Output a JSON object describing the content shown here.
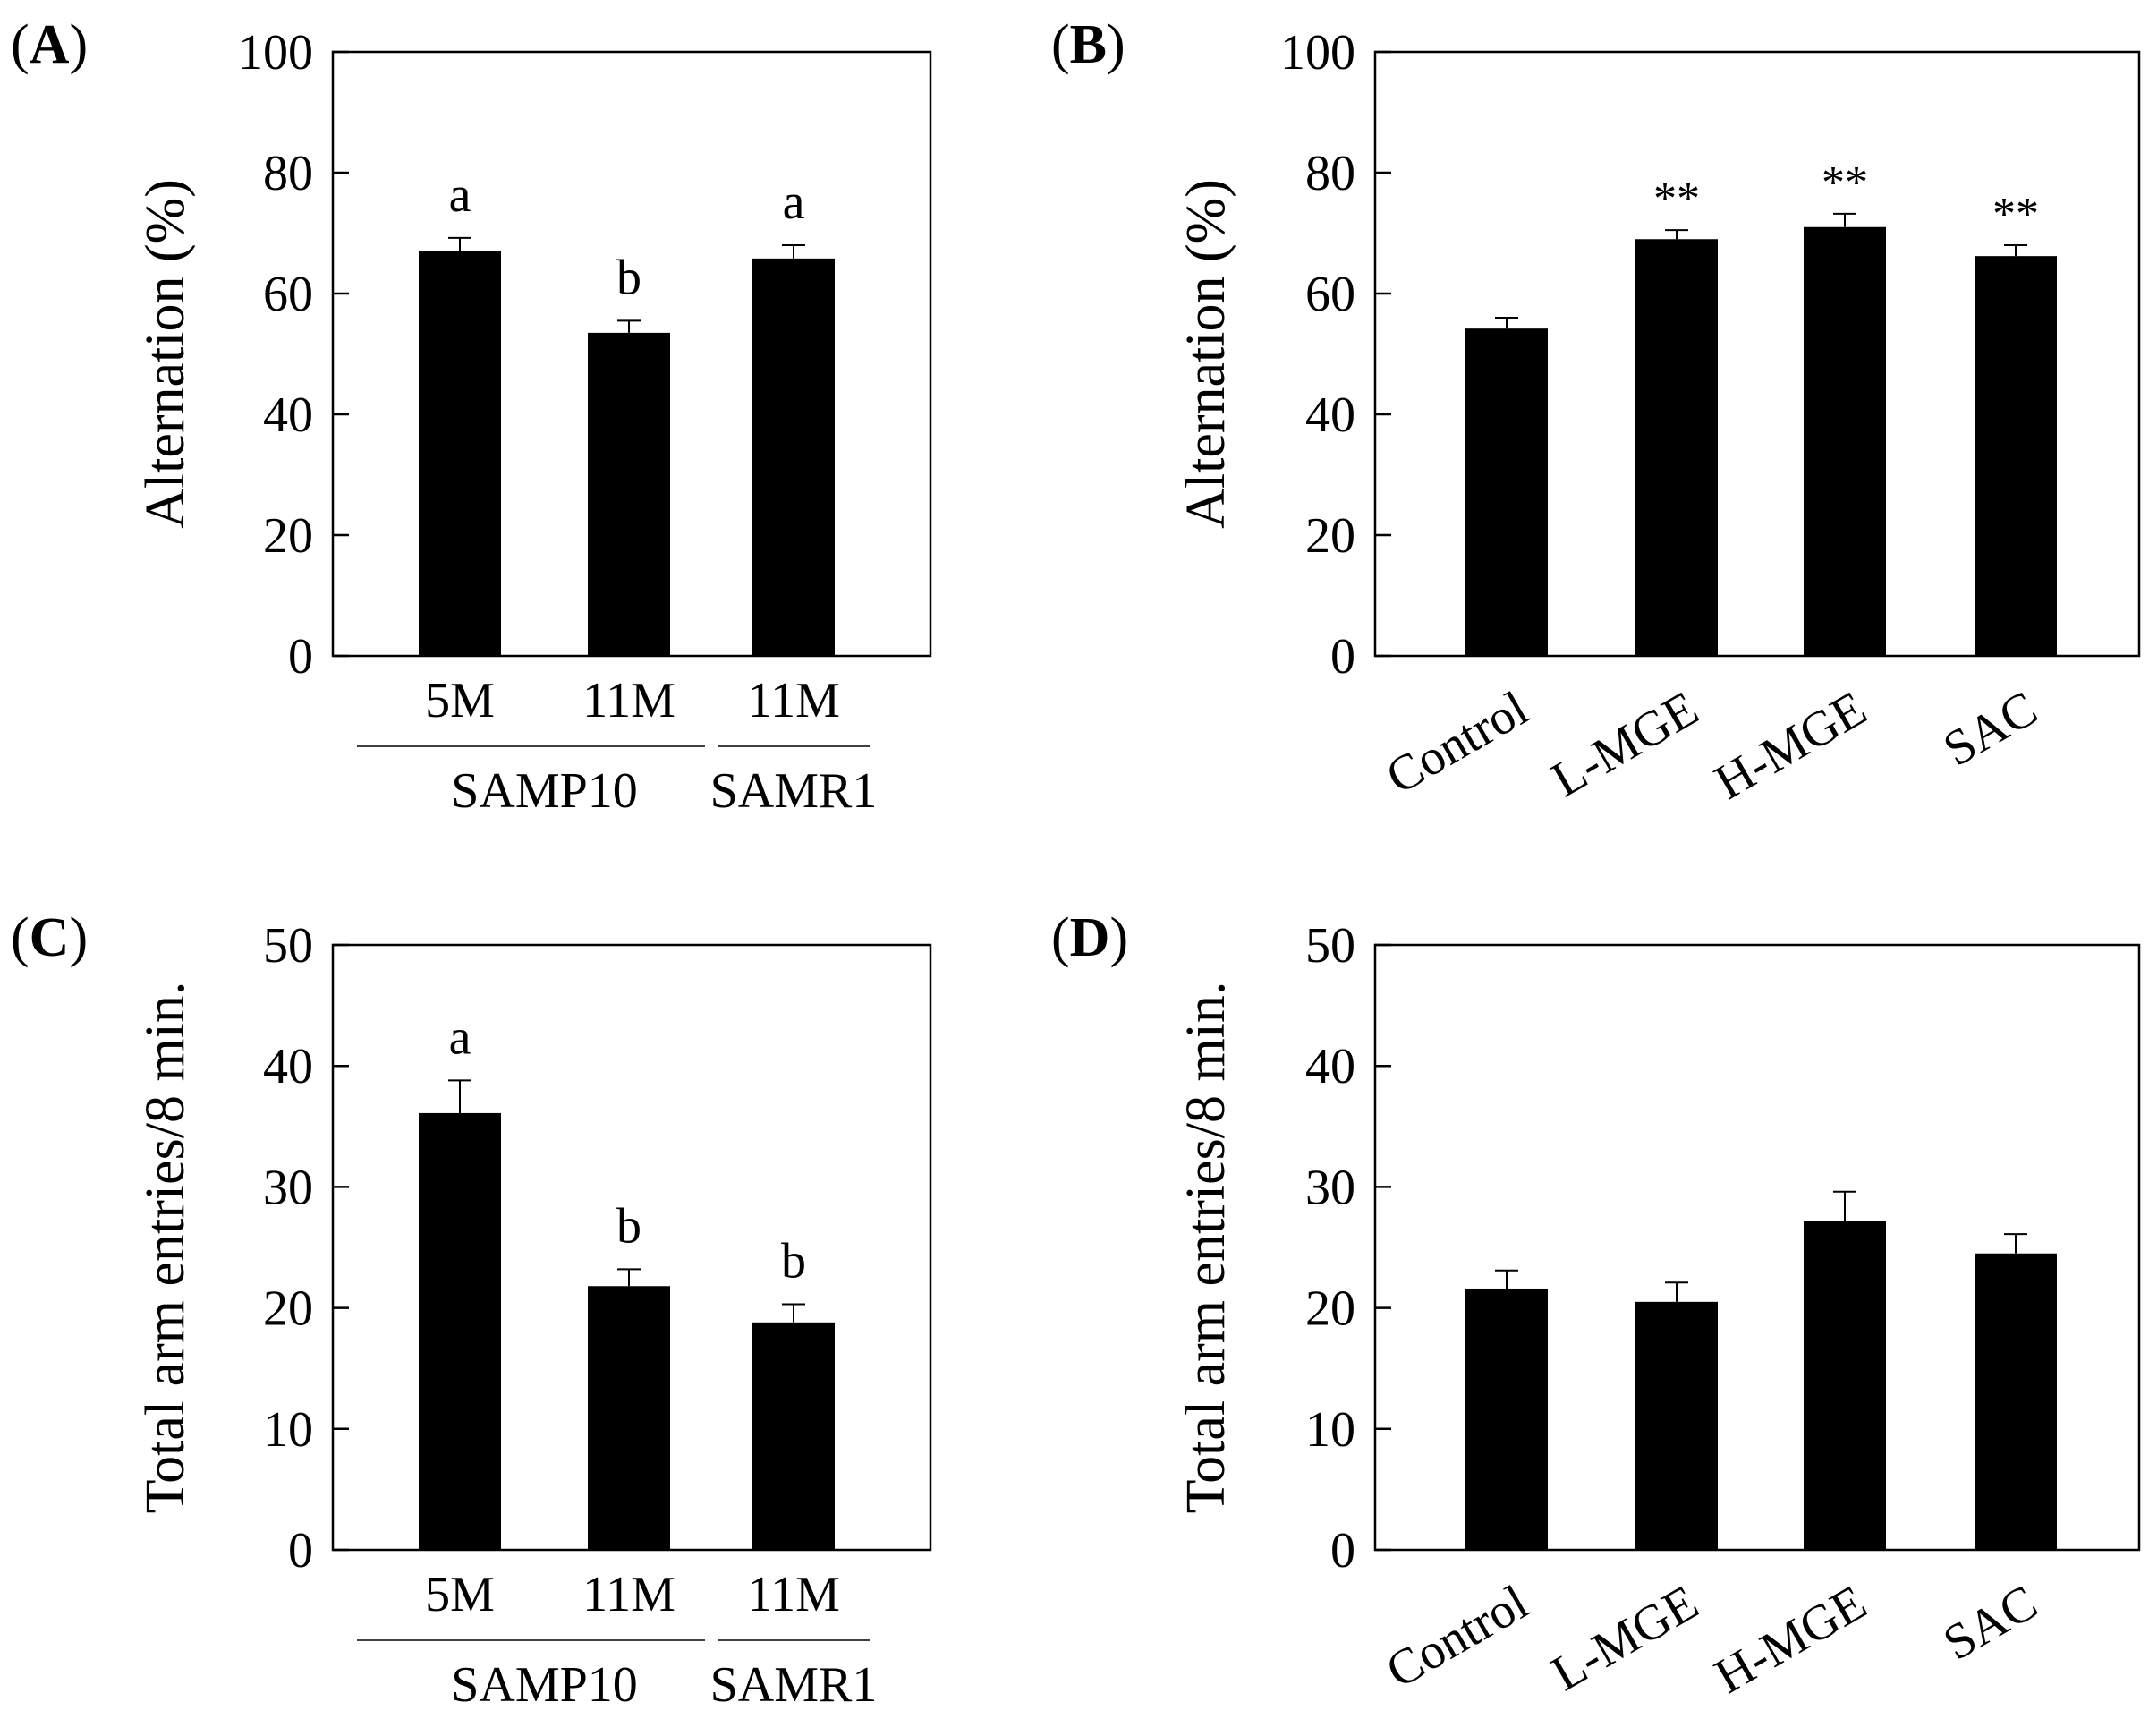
{
  "chart_data": [
    {
      "panel_label": "A",
      "type": "bar",
      "ylabel": "Alternation (%)",
      "ylim": [
        0,
        100
      ],
      "yticks": [
        "0",
        "20",
        "40",
        "60",
        "80",
        "100"
      ],
      "categories": [
        "5M",
        "11M",
        "11M"
      ],
      "groups": [
        {
          "label": "SAMP10",
          "span": [
            0,
            1
          ]
        },
        {
          "label": "SAMR1",
          "span": [
            2,
            2
          ]
        }
      ],
      "values": [
        67,
        53.5,
        65.8
      ],
      "errors": [
        2.2,
        2,
        2.2
      ],
      "annotations": [
        "a",
        "b",
        "a"
      ]
    },
    {
      "panel_label": "B",
      "type": "bar",
      "ylabel": "Alternation (%)",
      "ylim": [
        0,
        100
      ],
      "yticks": [
        "0",
        "20",
        "40",
        "60",
        "80",
        "100"
      ],
      "categories": [
        "Control",
        "L-MGE",
        "H-MGE",
        "SAC"
      ],
      "values": [
        54.2,
        69,
        71,
        66.2
      ],
      "errors": [
        1.8,
        1.5,
        2.2,
        1.8
      ],
      "annotations": [
        "",
        "**",
        "**",
        "**"
      ]
    },
    {
      "panel_label": "C",
      "type": "bar",
      "ylabel": "Total arm entries/8 min.",
      "ylim": [
        0,
        50
      ],
      "yticks": [
        "0",
        "10",
        "20",
        "30",
        "40",
        "50"
      ],
      "categories": [
        "5M",
        "11M",
        "11M"
      ],
      "groups": [
        {
          "label": "SAMP10",
          "span": [
            0,
            1
          ]
        },
        {
          "label": "SAMR1",
          "span": [
            2,
            2
          ]
        }
      ],
      "values": [
        36.1,
        21.8,
        18.8
      ],
      "errors": [
        2.7,
        1.4,
        1.5
      ],
      "annotations": [
        "a",
        "b",
        "b"
      ]
    },
    {
      "panel_label": "D",
      "type": "bar",
      "ylabel": "Total arm entries/8 min.",
      "ylim": [
        0,
        50
      ],
      "yticks": [
        "0",
        "10",
        "20",
        "30",
        "40",
        "50"
      ],
      "categories": [
        "Control",
        "L-MGE",
        "H-MGE",
        "SAC"
      ],
      "values": [
        21.6,
        20.5,
        27.2,
        24.5
      ],
      "errors": [
        1.5,
        1.6,
        2.4,
        1.6
      ],
      "annotations": [
        "",
        "",
        "",
        ""
      ]
    }
  ]
}
